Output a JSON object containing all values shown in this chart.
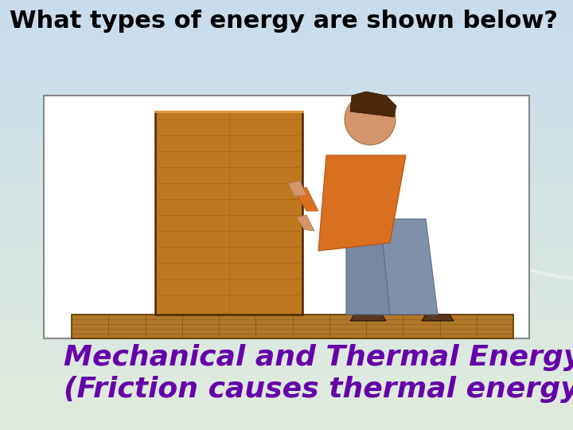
{
  "title": "What types of energy are shown below?",
  "title_fontsize": 22,
  "title_color": "#000000",
  "title_fontweight": "bold",
  "answer_line1": "Mechanical and Thermal Energy",
  "answer_line2": "(Friction causes thermal energy)",
  "answer_color": "#6600aa",
  "answer_fontsize": 26,
  "answer_fontweight": "bold",
  "fig_width": 7.2,
  "fig_height": 5.4,
  "dpi": 100
}
